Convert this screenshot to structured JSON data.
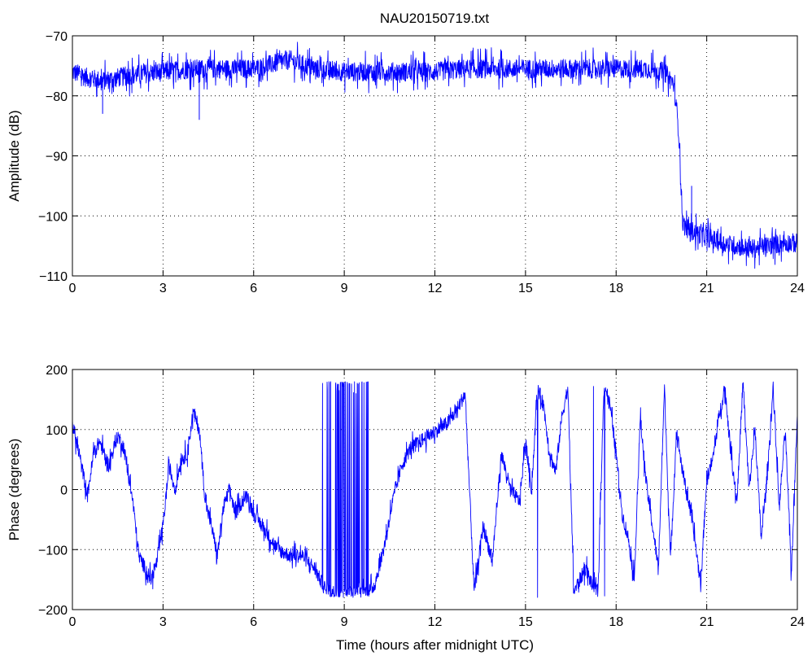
{
  "title": "NAU20150719.txt",
  "chart_data": [
    {
      "type": "line",
      "title": "NAU20150719.txt",
      "xlabel": "",
      "ylabel": "Amplitude (dB)",
      "xlim": [
        0,
        24
      ],
      "ylim": [
        -110,
        -70
      ],
      "xticks": [
        0,
        3,
        6,
        9,
        12,
        15,
        18,
        21,
        24
      ],
      "yticks": [
        -110,
        -100,
        -90,
        -80,
        -70
      ],
      "xtick_labels": [
        "0",
        "3",
        "6",
        "9",
        "12",
        "15",
        "18",
        "21",
        "24"
      ],
      "ytick_labels": [
        "−110",
        "−100",
        "−90",
        "−80",
        "−70"
      ],
      "grid": true,
      "color": "#0000ff",
      "noise": 1.6,
      "spikes": [
        [
          1.0,
          -83
        ],
        [
          4.2,
          -84
        ],
        [
          20.5,
          -95
        ]
      ],
      "series": [
        {
          "x": [
            0,
            0.5,
            1.0,
            1.5,
            2.0,
            3.0,
            4.0,
            5.0,
            6.0,
            6.8,
            7.2,
            8.0,
            9.0,
            10.0,
            11.0,
            12.0,
            13.0,
            14.0,
            15.0,
            16.0,
            17.0,
            18.0,
            19.0,
            19.6,
            19.9,
            20.0,
            20.1,
            20.15,
            20.2,
            20.3,
            20.5,
            21.0,
            21.5,
            22.0,
            22.5,
            23.0,
            23.5,
            24.0
          ],
          "y": [
            -76,
            -77,
            -77.5,
            -77,
            -76.5,
            -76,
            -75.5,
            -75.5,
            -75.5,
            -74.5,
            -74,
            -75.5,
            -76,
            -76,
            -76,
            -76,
            -75.5,
            -75.5,
            -75.5,
            -75.5,
            -75.5,
            -75.5,
            -75.5,
            -76,
            -78,
            -82,
            -88,
            -95,
            -101,
            -102,
            -102.5,
            -103.5,
            -104.5,
            -105,
            -105.5,
            -105,
            -104.5,
            -104.5
          ]
        }
      ]
    },
    {
      "type": "line",
      "title": "",
      "xlabel": "Time (hours after midnight UTC)",
      "ylabel": "Phase (degrees)",
      "xlim": [
        0,
        24
      ],
      "ylim": [
        -200,
        200
      ],
      "xticks": [
        0,
        3,
        6,
        9,
        12,
        15,
        18,
        21,
        24
      ],
      "yticks": [
        -200,
        -100,
        0,
        100,
        200
      ],
      "xtick_labels": [
        "0",
        "3",
        "6",
        "9",
        "12",
        "15",
        "18",
        "21",
        "24"
      ],
      "ytick_labels": [
        "−200",
        "−100",
        "0",
        "100",
        "200"
      ],
      "grid": true,
      "color": "#0000ff",
      "noise": 12,
      "wrap": [
        -180,
        180
      ],
      "series": [
        {
          "x": [
            0,
            0.3,
            0.5,
            0.7,
            0.9,
            1.2,
            1.5,
            1.7,
            2.0,
            2.2,
            2.4,
            2.6,
            2.8,
            3.0,
            3.2,
            3.4,
            3.6,
            3.8,
            4.0,
            4.2,
            4.4,
            4.6,
            4.8,
            5.0,
            5.2,
            5.4,
            5.6,
            5.8,
            6.0,
            6.4,
            6.8,
            7.2,
            7.6,
            8.0,
            8.2,
            8.4,
            8.6,
            8.8,
            9.0,
            9.2,
            9.4,
            9.6,
            9.8,
            10.0,
            10.3,
            10.6,
            10.9,
            11.2,
            11.5,
            11.8,
            12.1,
            12.4,
            12.7,
            13.0,
            13.3,
            13.6,
            13.9,
            14.2,
            14.5,
            14.8,
            15.0,
            15.2,
            15.4,
            15.6,
            15.8,
            16.0,
            16.2,
            16.4,
            16.6,
            16.8,
            17.0,
            17.2,
            17.4,
            17.6,
            17.8,
            18.0,
            18.2,
            18.4,
            18.6,
            18.8,
            19.0,
            19.2,
            19.4,
            19.6,
            19.8,
            20.0,
            20.2,
            20.4,
            20.6,
            20.8,
            21.0,
            21.2,
            21.4,
            21.6,
            21.8,
            22.0,
            22.2,
            22.4,
            22.6,
            22.8,
            23.0,
            23.2,
            23.4,
            23.6,
            23.8,
            24.0
          ],
          "y": [
            110,
            40,
            -10,
            60,
            80,
            40,
            90,
            70,
            -20,
            -110,
            -130,
            -150,
            -120,
            -60,
            40,
            0,
            50,
            60,
            130,
            100,
            -20,
            -60,
            -110,
            -30,
            0,
            -40,
            -20,
            -10,
            -40,
            -70,
            -100,
            -110,
            -110,
            -130,
            -150,
            -170,
            -170,
            -175,
            -175,
            -172,
            -175,
            -170,
            -170,
            -160,
            -100,
            -20,
            40,
            70,
            80,
            90,
            100,
            110,
            130,
            160,
            -170,
            -60,
            -120,
            60,
            0,
            -20,
            80,
            0,
            170,
            140,
            60,
            30,
            120,
            170,
            -170,
            -150,
            -130,
            -160,
            -170,
            180,
            140,
            60,
            -40,
            -80,
            -150,
            120,
            10,
            -60,
            -130,
            170,
            -120,
            100,
            30,
            -20,
            -80,
            -160,
            20,
            50,
            120,
            170,
            60,
            -20,
            180,
            0,
            100,
            -80,
            20,
            170,
            -30,
            100,
            -140,
            130
          ]
        }
      ]
    }
  ]
}
